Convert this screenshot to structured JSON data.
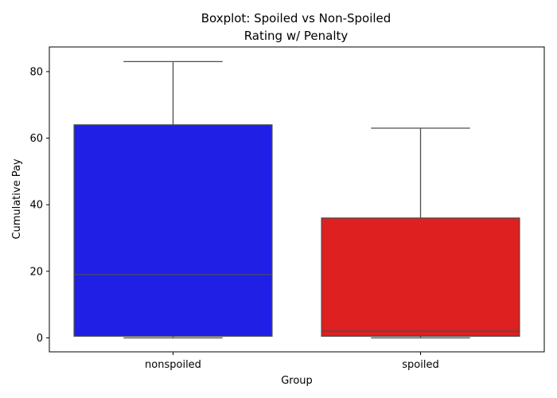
{
  "chart_data": {
    "type": "box",
    "title_lines": [
      "Boxplot: Spoiled vs Non-Spoiled",
      "Rating w/ Penalty"
    ],
    "xlabel": "Group",
    "ylabel": "Cumulative Pay",
    "ylim": [
      -4.2,
      87.4
    ],
    "yticks": [
      0,
      20,
      40,
      60,
      80
    ],
    "grid": false,
    "categories": [
      "nonspoiled",
      "spoiled"
    ],
    "boxes": [
      {
        "name": "nonspoiled",
        "whisker_low": 0,
        "q1": 0.5,
        "median": 19,
        "q3": 64,
        "whisker_high": 83,
        "color": "#1f1fe6"
      },
      {
        "name": "spoiled",
        "whisker_low": 0,
        "q1": 0.5,
        "median": 2,
        "q3": 36,
        "whisker_high": 63,
        "color": "#de2020"
      }
    ],
    "line_color": "#4d4d4d"
  }
}
